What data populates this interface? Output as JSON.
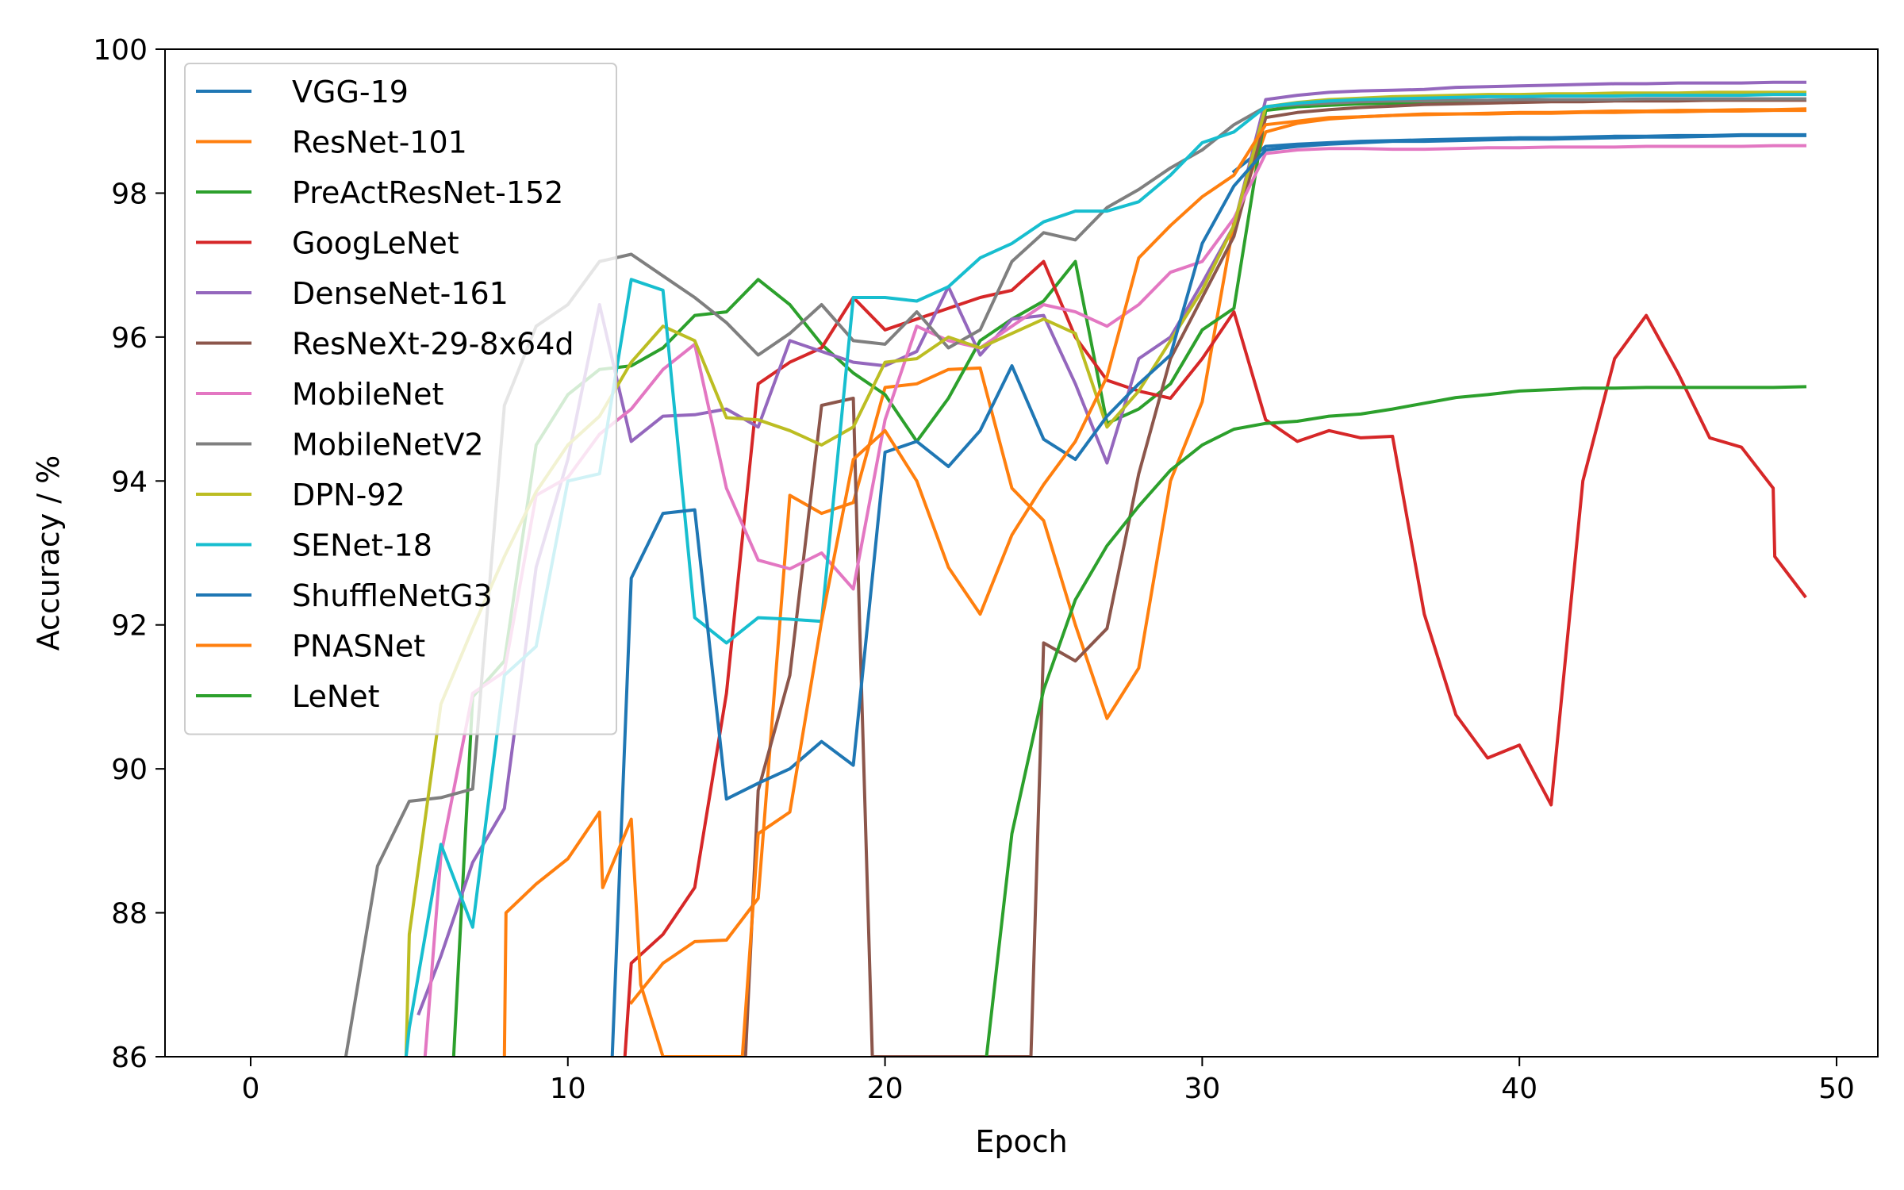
{
  "chart_data": {
    "type": "line",
    "title": "",
    "xlabel": "Epoch",
    "ylabel": "Accuracy / %",
    "xlim": [
      -2.7,
      51.3
    ],
    "ylim": [
      86,
      100
    ],
    "xticks": [
      0,
      10,
      20,
      30,
      40,
      50
    ],
    "yticks": [
      86,
      88,
      90,
      92,
      94,
      96,
      98,
      100
    ],
    "grid": false,
    "legend_position": "top-left",
    "series": [
      {
        "name": "VGG-19",
        "color": "#1f77b4",
        "x": [
          31,
          32,
          33,
          34,
          35,
          36,
          37,
          38,
          39,
          40,
          41,
          42,
          43,
          44,
          45,
          46,
          47,
          48,
          49
        ],
        "y": [
          98.3,
          98.65,
          98.68,
          98.7,
          98.72,
          98.73,
          98.74,
          98.75,
          98.76,
          98.77,
          98.77,
          98.78,
          98.79,
          98.79,
          98.8,
          98.8,
          98.81,
          98.81,
          98.81
        ]
      },
      {
        "name": "ResNet-101",
        "color": "#ff7f0e",
        "x": [
          12,
          13,
          14,
          15,
          16,
          17,
          18,
          19,
          20,
          21,
          22,
          23,
          24,
          25,
          26,
          27,
          28,
          29,
          30,
          31,
          32,
          33,
          34,
          35,
          36,
          37,
          38,
          39,
          40,
          41,
          42,
          43,
          44,
          45,
          46,
          47,
          48,
          49
        ],
        "y": [
          86.75,
          87.3,
          87.6,
          87.62,
          88.2,
          93.8,
          93.55,
          93.7,
          95.3,
          95.35,
          95.55,
          95.57,
          93.9,
          93.45,
          92.0,
          90.7,
          91.4,
          94.0,
          95.1,
          97.6,
          98.85,
          98.97,
          99.03,
          99.06,
          99.08,
          99.1,
          99.1,
          99.11,
          99.12,
          99.12,
          99.13,
          99.14,
          99.14,
          99.15,
          99.15,
          99.16,
          99.16,
          99.17
        ]
      },
      {
        "name": "PreActResNet-152",
        "color": "#2ca02c",
        "x": [
          6.4,
          7,
          8,
          9,
          10,
          11,
          12,
          13,
          14,
          15,
          16,
          17,
          18,
          19,
          20,
          21,
          22,
          23,
          24,
          25,
          26,
          27,
          28,
          29,
          30,
          31,
          32,
          33,
          34,
          35,
          36,
          37,
          38,
          39,
          40,
          41,
          42,
          43,
          44,
          45,
          46,
          47,
          48,
          49
        ],
        "y": [
          86,
          91.0,
          91.5,
          94.5,
          95.2,
          95.55,
          95.6,
          95.85,
          96.3,
          96.35,
          96.8,
          96.45,
          95.9,
          95.5,
          95.2,
          94.55,
          95.15,
          95.95,
          96.25,
          96.5,
          97.05,
          94.8,
          95.0,
          95.35,
          96.1,
          96.4,
          99.15,
          99.2,
          99.22,
          99.24,
          99.25,
          99.26,
          99.27,
          99.27,
          99.28,
          99.28,
          99.28,
          99.29,
          99.29,
          99.29,
          99.29,
          99.3,
          99.3,
          99.3
        ]
      },
      {
        "name": "GoogLeNet",
        "color": "#d62728",
        "x": [
          11.8,
          12,
          13,
          14,
          15,
          16,
          17,
          18,
          19,
          20,
          21,
          22,
          23,
          24,
          25,
          26,
          27,
          28,
          29,
          30,
          31,
          32,
          33,
          34,
          35,
          36,
          37,
          38,
          39,
          40,
          41,
          42,
          43,
          44,
          45,
          46,
          47,
          48,
          48.05,
          49
        ],
        "y": [
          86,
          87.3,
          87.7,
          88.35,
          91.05,
          95.35,
          95.65,
          95.85,
          96.55,
          96.1,
          96.25,
          96.4,
          96.55,
          96.65,
          97.05,
          96.0,
          95.4,
          95.25,
          95.15,
          95.7,
          96.35,
          94.85,
          94.55,
          94.7,
          94.6,
          94.62,
          92.15,
          90.75,
          90.15,
          90.33,
          89.5,
          94.0,
          95.7,
          96.3,
          95.5,
          94.6,
          94.47,
          93.9,
          92.95,
          92.4
        ]
      },
      {
        "name": "DenseNet-161",
        "color": "#9467bd",
        "x": [
          5.3,
          6,
          7,
          8,
          9,
          10,
          11,
          12,
          13,
          14,
          15,
          16,
          17,
          18,
          19,
          20,
          21,
          22,
          23,
          24,
          25,
          26,
          27,
          28,
          29,
          30,
          31,
          32,
          33,
          34,
          35,
          36,
          37,
          38,
          39,
          40,
          41,
          42,
          43,
          44,
          45,
          46,
          47,
          48,
          49
        ],
        "y": [
          86.6,
          87.4,
          88.7,
          89.45,
          92.8,
          94.3,
          96.45,
          94.55,
          94.9,
          94.92,
          95.0,
          94.75,
          95.95,
          95.8,
          95.65,
          95.6,
          95.8,
          96.7,
          95.75,
          96.25,
          96.3,
          95.35,
          94.25,
          95.7,
          96.0,
          96.75,
          97.55,
          99.3,
          99.36,
          99.4,
          99.42,
          99.43,
          99.44,
          99.47,
          99.48,
          99.49,
          99.5,
          99.51,
          99.52,
          99.52,
          99.53,
          99.53,
          99.53,
          99.54,
          99.54
        ]
      },
      {
        "name": "ResNeXt-29-8x64d",
        "color": "#8c564b",
        "x": [
          15.6,
          16,
          17,
          18,
          19,
          19.2,
          19.6,
          24.6,
          25,
          26,
          27,
          28,
          29,
          30,
          31,
          32,
          33,
          34,
          35,
          36,
          37,
          38,
          39,
          40,
          41,
          42,
          43,
          44,
          45,
          46,
          47,
          48,
          49
        ],
        "y": [
          86,
          89.7,
          91.3,
          95.05,
          95.15,
          92.0,
          86,
          86,
          91.75,
          91.5,
          91.95,
          94.1,
          95.7,
          96.55,
          97.4,
          99.05,
          99.12,
          99.16,
          99.19,
          99.21,
          99.23,
          99.24,
          99.25,
          99.26,
          99.27,
          99.27,
          99.28,
          99.28,
          99.28,
          99.29,
          99.29,
          99.29,
          99.29
        ]
      },
      {
        "name": "MobileNet",
        "color": "#e377c2",
        "x": [
          5.5,
          6,
          7,
          8,
          9,
          10,
          11,
          12,
          13,
          14,
          15,
          16,
          17,
          18,
          19,
          20,
          21,
          22,
          23,
          24,
          25,
          26,
          27,
          28,
          29,
          30,
          31,
          32,
          33,
          34,
          35,
          36,
          37,
          38,
          39,
          40,
          41,
          42,
          43,
          44,
          45,
          46,
          47,
          48,
          49
        ],
        "y": [
          86,
          88.8,
          91.05,
          91.35,
          93.8,
          94.05,
          94.65,
          95.0,
          95.55,
          95.9,
          93.9,
          92.9,
          92.78,
          93.0,
          92.5,
          94.85,
          96.15,
          95.95,
          95.85,
          96.15,
          96.45,
          96.35,
          96.15,
          96.45,
          96.9,
          97.05,
          97.65,
          98.55,
          98.6,
          98.62,
          98.62,
          98.61,
          98.61,
          98.62,
          98.63,
          98.63,
          98.64,
          98.64,
          98.64,
          98.65,
          98.65,
          98.65,
          98.65,
          98.66,
          98.66
        ]
      },
      {
        "name": "MobileNetV2",
        "color": "#7f7f7f",
        "x": [
          3,
          4,
          5,
          6,
          7,
          8,
          9,
          10,
          11,
          12,
          13,
          14,
          15,
          16,
          17,
          18,
          19,
          20,
          21,
          22,
          23,
          24,
          25,
          26,
          27,
          28,
          29,
          30,
          31,
          32,
          33,
          34,
          35,
          36,
          37,
          38,
          39,
          40,
          41,
          42,
          43,
          44,
          45,
          46,
          47,
          48,
          49
        ],
        "y": [
          86,
          88.65,
          89.55,
          89.6,
          89.72,
          95.05,
          96.15,
          96.45,
          97.05,
          97.15,
          96.85,
          96.55,
          96.2,
          95.75,
          96.05,
          96.45,
          95.95,
          95.9,
          96.35,
          95.85,
          96.1,
          97.05,
          97.45,
          97.35,
          97.8,
          98.05,
          98.35,
          98.6,
          98.95,
          99.2,
          99.23,
          99.25,
          99.27,
          99.28,
          99.28,
          99.29,
          99.29,
          99.3,
          99.3,
          99.3,
          99.3,
          99.31,
          99.31,
          99.31,
          99.31,
          99.31,
          99.31
        ]
      },
      {
        "name": "DPN-92",
        "color": "#bcbd22",
        "x": [
          4.9,
          5,
          6,
          7,
          8,
          9,
          10,
          11,
          12,
          13,
          14,
          15,
          16,
          17,
          18,
          19,
          20,
          21,
          22,
          23,
          24,
          25,
          26,
          27,
          28,
          29,
          30,
          31,
          32,
          33,
          34,
          35,
          36,
          37,
          38,
          39,
          40,
          41,
          42,
          43,
          44,
          45,
          46,
          47,
          48,
          49
        ],
        "y": [
          86,
          87.7,
          90.9,
          91.95,
          92.95,
          93.85,
          94.5,
          94.9,
          95.65,
          96.15,
          95.95,
          94.88,
          94.85,
          94.7,
          94.5,
          94.75,
          95.65,
          95.7,
          96.0,
          95.85,
          96.05,
          96.25,
          96.05,
          94.75,
          95.25,
          95.95,
          96.65,
          97.55,
          99.2,
          99.26,
          99.3,
          99.32,
          99.34,
          99.35,
          99.36,
          99.37,
          99.37,
          99.38,
          99.38,
          99.39,
          99.39,
          99.39,
          99.4,
          99.4,
          99.4,
          99.4
        ]
      },
      {
        "name": "SENet-18",
        "color": "#17becf",
        "x": [
          4.9,
          5,
          6,
          7,
          8,
          9,
          10,
          11,
          12,
          13,
          14,
          15,
          16,
          17,
          18,
          19,
          20,
          21,
          22,
          23,
          24,
          25,
          26,
          27,
          28,
          29,
          30,
          31,
          32,
          33,
          34,
          35,
          36,
          37,
          38,
          39,
          40,
          41,
          42,
          43,
          44,
          45,
          46,
          47,
          48,
          49
        ],
        "y": [
          86,
          86.4,
          88.95,
          87.8,
          91.3,
          91.7,
          94.0,
          94.1,
          96.8,
          96.65,
          92.1,
          91.75,
          92.1,
          92.08,
          92.05,
          96.55,
          96.55,
          96.5,
          96.7,
          97.1,
          97.3,
          97.6,
          97.75,
          97.75,
          97.88,
          98.25,
          98.7,
          98.85,
          99.2,
          99.25,
          99.28,
          99.3,
          99.31,
          99.32,
          99.33,
          99.34,
          99.34,
          99.35,
          99.35,
          99.35,
          99.36,
          99.36,
          99.36,
          99.36,
          99.37,
          99.37
        ]
      },
      {
        "name": "ShuffleNetG3",
        "color": "#1f77b4",
        "x": [
          11.4,
          12,
          13,
          14,
          15,
          16,
          17,
          18,
          19,
          20,
          21,
          22,
          23,
          24,
          25,
          26,
          27,
          28,
          29,
          30,
          31,
          32,
          33,
          34,
          35,
          36,
          37,
          38,
          39,
          40,
          41,
          42,
          43,
          44,
          45,
          46,
          47,
          48,
          48.1,
          49
        ],
        "y": [
          86,
          92.65,
          93.55,
          93.6,
          89.58,
          89.8,
          90.0,
          90.38,
          90.05,
          94.4,
          94.55,
          94.2,
          94.7,
          95.6,
          94.58,
          94.3,
          94.9,
          95.35,
          95.75,
          97.3,
          98.1,
          98.6,
          98.65,
          98.68,
          98.7,
          98.72,
          98.72,
          98.73,
          98.74,
          98.75,
          98.75,
          98.76,
          98.77,
          98.78,
          98.78,
          98.79,
          98.8,
          98.8,
          98.8,
          98.8
        ]
      },
      {
        "name": "PNASNet",
        "color": "#ff7f0e",
        "x": [
          8,
          8.05,
          9,
          10,
          11,
          11.1,
          12,
          12.3,
          13,
          13.2,
          15.5,
          16,
          17,
          18,
          19,
          20,
          21,
          22,
          23,
          24,
          25,
          26,
          27,
          28,
          29,
          30,
          31,
          32,
          33,
          34,
          35,
          36,
          37,
          38,
          39,
          40,
          41,
          42,
          43,
          44,
          45,
          46,
          47,
          48,
          49
        ],
        "y": [
          86,
          88.0,
          88.4,
          88.75,
          89.4,
          88.35,
          89.3,
          87.0,
          86,
          86,
          86,
          89.1,
          89.4,
          92.05,
          94.3,
          94.7,
          94.0,
          92.8,
          92.15,
          93.25,
          93.95,
          94.55,
          95.45,
          97.1,
          97.55,
          97.95,
          98.25,
          98.95,
          99.0,
          99.05,
          99.06,
          99.08,
          99.09,
          99.1,
          99.1,
          99.11,
          99.11,
          99.12,
          99.12,
          99.13,
          99.13,
          99.14,
          99.14,
          99.15,
          99.15
        ]
      },
      {
        "name": "LeNet",
        "color": "#2ca02c",
        "x": [
          23.2,
          24,
          25,
          26,
          27,
          28,
          29,
          30,
          31,
          32,
          33,
          34,
          35,
          36,
          37,
          38,
          39,
          40,
          41,
          42,
          43,
          44,
          45,
          46,
          47,
          48,
          49
        ],
        "y": [
          86,
          89.1,
          91.1,
          92.35,
          93.1,
          93.65,
          94.15,
          94.5,
          94.72,
          94.8,
          94.83,
          94.9,
          94.93,
          95.0,
          95.08,
          95.16,
          95.2,
          95.25,
          95.27,
          95.29,
          95.29,
          95.3,
          95.3,
          95.3,
          95.3,
          95.3,
          95.31
        ]
      }
    ]
  }
}
